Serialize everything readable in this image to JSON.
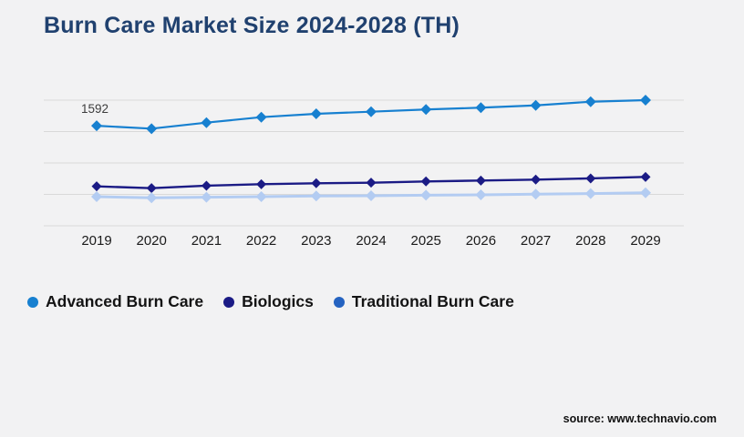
{
  "page": {
    "title": "Burn Care Market Size 2024-2028 (TH)",
    "source": "source: www.technavio.com",
    "background_color": "#f2f2f3",
    "title_color": "#20416f"
  },
  "legend": {
    "items": [
      {
        "label": "Advanced Burn Care",
        "color": "#1780d0"
      },
      {
        "label": "Biologics",
        "color": "#1b1b85"
      },
      {
        "label": "Traditional Burn Care",
        "color": "#2563c1"
      }
    ]
  },
  "chart_data": {
    "type": "line",
    "title": "Burn Care Market Size 2024-2028 (TH)",
    "categories": [
      "2019",
      "2020",
      "2021",
      "2022",
      "2023",
      "2024",
      "2025",
      "2026",
      "2027",
      "2028",
      "2029"
    ],
    "series": [
      {
        "name": "Advanced Burn Care",
        "line_color": "#1780d0",
        "marker": "diamond",
        "values": [
          1592,
          1546,
          1642,
          1729,
          1783,
          1816,
          1851,
          1880,
          1917,
          1975,
          2000
        ]
      },
      {
        "name": "Biologics",
        "line_color": "#1b1b85",
        "marker": "diamond",
        "values": [
          628,
          599,
          638,
          662,
          677,
          686,
          706,
          720,
          735,
          754,
          778
        ]
      },
      {
        "name": "Traditional Burn Care",
        "line_color": "#b3ccf2",
        "marker": "diamond",
        "values": [
          464,
          445,
          454,
          464,
          474,
          478,
          488,
          493,
          503,
          512,
          526
        ]
      }
    ],
    "annotations": [
      {
        "text": "1592",
        "series_index": 0,
        "category_index": 0
      }
    ],
    "ylim": [
      0,
      2000
    ],
    "grid": true,
    "gridline_values": [
      0,
      500,
      1000,
      1500,
      2000
    ],
    "gridline_color": "#d9d9d9",
    "y_axis_labels_visible": false,
    "legend_position": "bottom"
  }
}
